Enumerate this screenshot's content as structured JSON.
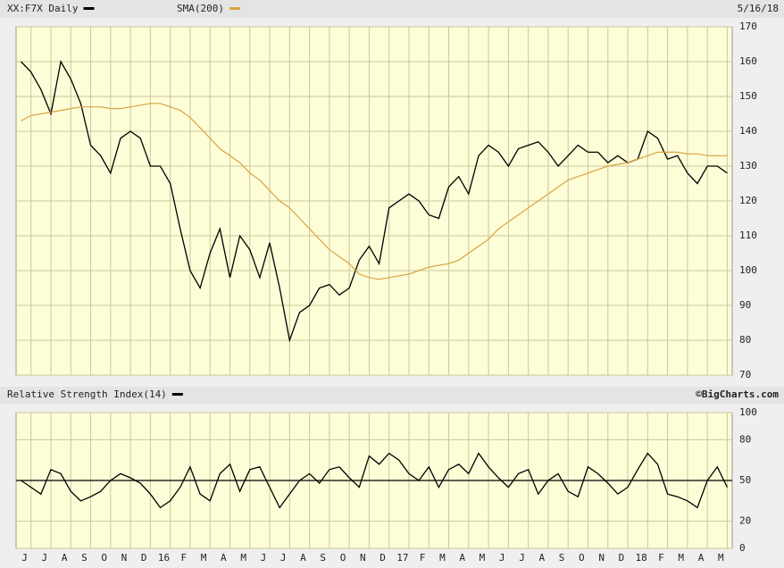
{
  "chart_data": [
    {
      "type": "line",
      "date_label": "5/16/18",
      "series": [
        {
          "name": "XX:F7X Daily",
          "color": "#000000",
          "values": [
            160,
            157,
            152,
            145,
            160,
            155,
            148,
            136,
            133,
            128,
            138,
            140,
            138,
            130,
            130,
            125,
            112,
            100,
            95,
            105,
            112,
            98,
            110,
            106,
            98,
            108,
            95,
            80,
            88,
            90,
            95,
            96,
            93,
            95,
            103,
            107,
            102,
            118,
            120,
            122,
            120,
            116,
            115,
            124,
            127,
            122,
            133,
            136,
            134,
            130,
            135,
            136,
            137,
            134,
            130,
            133,
            136,
            134,
            134,
            131,
            133,
            131,
            132,
            140,
            138,
            132,
            133,
            128,
            125,
            130,
            130,
            128
          ]
        },
        {
          "name": "SMA(200)",
          "color": "#d9a441",
          "values": [
            143,
            144.5,
            145,
            145.5,
            146,
            146.5,
            147,
            147,
            147,
            146.5,
            146.5,
            147,
            147.5,
            148,
            148,
            147,
            146,
            144,
            141,
            138,
            135,
            133,
            131,
            128,
            126,
            123,
            120,
            118,
            115,
            112,
            109,
            106,
            104,
            102,
            99,
            98,
            97.5,
            98,
            98.5,
            99,
            100,
            101,
            101.5,
            102,
            103,
            105,
            107,
            109,
            112,
            114,
            116,
            118,
            120,
            122,
            124,
            126,
            127,
            128,
            129,
            130,
            130.5,
            131,
            132,
            133,
            134,
            134,
            134,
            133.5,
            133.5,
            133,
            133,
            133
          ]
        }
      ],
      "ylim": [
        70,
        170
      ],
      "yticks": [
        70,
        80,
        90,
        100,
        110,
        120,
        130,
        140,
        150,
        160,
        170
      ],
      "grid": true
    },
    {
      "type": "line",
      "credit": "©BigCharts.com",
      "categories": [
        "J",
        null,
        "J",
        null,
        "A",
        null,
        "S",
        null,
        "O",
        null,
        "N",
        null,
        "D",
        null,
        "16",
        null,
        "F",
        null,
        "M",
        null,
        "A",
        null,
        "M",
        null,
        "J",
        null,
        "J",
        null,
        "A",
        null,
        "S",
        null,
        "O",
        null,
        "N",
        null,
        "D",
        null,
        "17",
        null,
        "F",
        null,
        "M",
        null,
        "A",
        null,
        "M",
        null,
        "J",
        null,
        "J",
        null,
        "A",
        null,
        "S",
        null,
        "O",
        null,
        "N",
        null,
        "D",
        null,
        "18",
        null,
        "F",
        null,
        "M",
        null,
        "A",
        null,
        "M",
        null
      ],
      "series": [
        {
          "name": "Relative Strength Index(14)",
          "color": "#000000",
          "values": [
            50,
            45,
            40,
            58,
            55,
            42,
            35,
            38,
            42,
            50,
            55,
            52,
            48,
            40,
            30,
            35,
            45,
            60,
            40,
            35,
            55,
            62,
            42,
            58,
            60,
            45,
            30,
            40,
            50,
            55,
            48,
            58,
            60,
            52,
            45,
            68,
            62,
            70,
            65,
            55,
            50,
            60,
            45,
            58,
            62,
            55,
            70,
            60,
            52,
            45,
            55,
            58,
            40,
            50,
            55,
            42,
            38,
            60,
            55,
            48,
            40,
            45,
            58,
            70,
            62,
            40,
            38,
            35,
            30,
            50,
            60,
            45
          ]
        }
      ],
      "ylim": [
        0,
        100
      ],
      "yticks": [
        0,
        20,
        50,
        80,
        100
      ],
      "reference_line": 50,
      "grid": true
    }
  ]
}
